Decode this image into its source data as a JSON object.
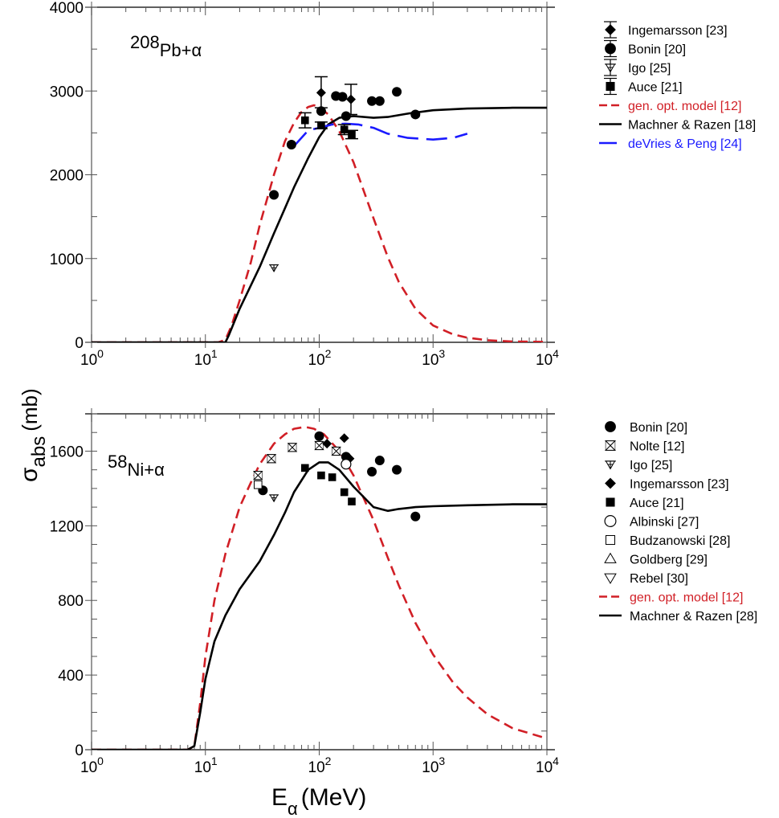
{
  "chart_data": [
    {
      "type": "scatter",
      "id": "pb",
      "title": "",
      "annotation": {
        "mass": "208",
        "text": "Pb+α"
      },
      "xlabel": "E_α (MeV)",
      "ylabel": "σ_abs (mb)",
      "xscale": "log",
      "xlim": [
        1,
        10000
      ],
      "ylim": [
        0,
        4000
      ],
      "yticks": [
        0,
        1000,
        2000,
        3000,
        4000
      ],
      "ytick_labels": [
        "0",
        "1000",
        "2000",
        "3000",
        "4000"
      ],
      "xticks": [
        1,
        10,
        100,
        1000,
        10000
      ],
      "xtick_labels": [
        {
          "base": "10",
          "exp": "0"
        },
        {
          "base": "10",
          "exp": "1"
        },
        {
          "base": "10",
          "exp": "2"
        },
        {
          "base": "10",
          "exp": "3"
        },
        {
          "base": "10",
          "exp": "4"
        }
      ],
      "legend_position": "right-outside-top",
      "series": [
        {
          "name": "Ingemarsson [23]",
          "kind": "points",
          "marker": "diamond-filled",
          "color": "#000000",
          "points": [
            [
              104,
              2980,
              3170,
              2800
            ],
            [
              190,
              2900,
              3080,
              2720
            ]
          ]
        },
        {
          "name": "Bonin [20]",
          "kind": "points",
          "marker": "circle-filled",
          "color": "#000000",
          "points": [
            [
              40,
              1760
            ],
            [
              57,
              2360
            ],
            [
              104,
              2760
            ],
            [
              140,
              2940
            ],
            [
              160,
              2930
            ],
            [
              172,
              2700
            ],
            [
              290,
              2880
            ],
            [
              340,
              2880
            ],
            [
              480,
              2990
            ],
            [
              700,
              2720
            ]
          ]
        },
        {
          "name": "Igo [25]",
          "kind": "points",
          "marker": "igo",
          "color": "#000000",
          "points": [
            [
              40,
              890
            ]
          ]
        },
        {
          "name": "Auce [21]",
          "kind": "points",
          "marker": "square-filled",
          "color": "#000000",
          "points": [
            [
              75,
              2650,
              2740,
              2560
            ],
            [
              104,
              2590,
              2630,
              2550
            ],
            [
              166,
              2540,
              2600,
              2480
            ],
            [
              193,
              2480,
              2530,
              2430
            ]
          ]
        },
        {
          "name": "gen. opt. model [12]",
          "kind": "line",
          "style": "dashed",
          "color": "#d11f26",
          "points": [
            [
              1,
              0
            ],
            [
              13,
              0
            ],
            [
              15,
              30
            ],
            [
              17,
              200
            ],
            [
              20,
              500
            ],
            [
              25,
              950
            ],
            [
              30,
              1400
            ],
            [
              40,
              2000
            ],
            [
              50,
              2400
            ],
            [
              60,
              2620
            ],
            [
              70,
              2750
            ],
            [
              80,
              2810
            ],
            [
              90,
              2830
            ],
            [
              100,
              2810
            ],
            [
              120,
              2720
            ],
            [
              150,
              2520
            ],
            [
              200,
              2150
            ],
            [
              300,
              1480
            ],
            [
              400,
              1020
            ],
            [
              500,
              720
            ],
            [
              700,
              400
            ],
            [
              1000,
              200
            ],
            [
              1500,
              95
            ],
            [
              2000,
              55
            ],
            [
              3000,
              25
            ],
            [
              5000,
              10
            ],
            [
              10000,
              5
            ]
          ]
        },
        {
          "name": "Machner & Razen [18]",
          "kind": "line",
          "style": "solid",
          "color": "#000000",
          "points": [
            [
              1,
              0
            ],
            [
              15,
              0
            ],
            [
              16,
              80
            ],
            [
              20,
              400
            ],
            [
              30,
              900
            ],
            [
              40,
              1300
            ],
            [
              50,
              1600
            ],
            [
              60,
              1850
            ],
            [
              80,
              2200
            ],
            [
              100,
              2450
            ],
            [
              120,
              2600
            ],
            [
              150,
              2680
            ],
            [
              200,
              2700
            ],
            [
              300,
              2680
            ],
            [
              400,
              2690
            ],
            [
              600,
              2730
            ],
            [
              1000,
              2770
            ],
            [
              2000,
              2790
            ],
            [
              5000,
              2800
            ],
            [
              10000,
              2800
            ]
          ]
        },
        {
          "name": "deVries & Peng [24]",
          "kind": "line",
          "style": "longdash",
          "color": "#1a1aff",
          "points": [
            [
              58,
              2320
            ],
            [
              80,
              2530
            ],
            [
              100,
              2560
            ],
            [
              130,
              2600
            ],
            [
              170,
              2610
            ],
            [
              220,
              2600
            ],
            [
              300,
              2560
            ],
            [
              400,
              2490
            ],
            [
              600,
              2440
            ],
            [
              1000,
              2420
            ],
            [
              1500,
              2440
            ],
            [
              2000,
              2490
            ]
          ]
        }
      ]
    },
    {
      "type": "scatter",
      "id": "ni",
      "title": "",
      "annotation": {
        "mass": "58",
        "text": "Ni+α"
      },
      "xlabel": "E_α (MeV)",
      "ylabel": "σ_abs (mb)",
      "xscale": "log",
      "xlim": [
        1,
        10000
      ],
      "ylim": [
        0,
        1800
      ],
      "yticks": [
        0,
        400,
        800,
        1200,
        1600
      ],
      "ytick_labels": [
        "0",
        "400",
        "800",
        "1200",
        "1600"
      ],
      "xticks": [
        1,
        10,
        100,
        1000,
        10000
      ],
      "xtick_labels": [
        {
          "base": "10",
          "exp": "0"
        },
        {
          "base": "10",
          "exp": "1"
        },
        {
          "base": "10",
          "exp": "2"
        },
        {
          "base": "10",
          "exp": "3"
        },
        {
          "base": "10",
          "exp": "4"
        }
      ],
      "legend_position": "right-outside-top",
      "series": [
        {
          "name": "Bonin [20]",
          "kind": "points",
          "marker": "circle-filled",
          "color": "#000000",
          "points": [
            [
              32,
              1390
            ],
            [
              100,
              1680
            ],
            [
              172,
              1570
            ],
            [
              290,
              1490
            ],
            [
              340,
              1550
            ],
            [
              480,
              1500
            ],
            [
              700,
              1250
            ]
          ]
        },
        {
          "name": "Nolte [12]",
          "kind": "points",
          "marker": "nolte",
          "color": "#000000",
          "points": [
            [
              29,
              1470
            ],
            [
              38,
              1560
            ],
            [
              58,
              1620
            ],
            [
              100,
              1630
            ],
            [
              141,
              1600
            ]
          ]
        },
        {
          "name": "Igo [25]",
          "kind": "points",
          "marker": "igo",
          "color": "#000000",
          "points": [
            [
              40,
              1350
            ]
          ]
        },
        {
          "name": "Ingemarsson [23]",
          "kind": "points",
          "marker": "diamond-filled",
          "color": "#000000",
          "points": [
            [
              117,
              1640
            ],
            [
              166,
              1670
            ],
            [
              185,
              1560
            ]
          ]
        },
        {
          "name": "Auce [21]",
          "kind": "points",
          "marker": "square-filled",
          "color": "#000000",
          "points": [
            [
              75,
              1510
            ],
            [
              104,
              1470
            ],
            [
              130,
              1460
            ],
            [
              166,
              1380
            ],
            [
              193,
              1330
            ]
          ]
        },
        {
          "name": "Albinski  [27]",
          "kind": "points",
          "marker": "circle-open",
          "color": "#000000",
          "points": [
            [
              172,
              1530
            ]
          ]
        },
        {
          "name": "Budzanowski [28]",
          "kind": "points",
          "marker": "square-open",
          "color": "#000000",
          "points": [
            [
              29,
              1420
            ]
          ]
        },
        {
          "name": "Goldberg [29]",
          "kind": "points",
          "marker": "triangle-up-open",
          "color": "#000000",
          "points": []
        },
        {
          "name": "Rebel [30]",
          "kind": "points",
          "marker": "triangle-down-open",
          "color": "#000000",
          "points": []
        },
        {
          "name": "gen. opt. model [12]",
          "kind": "line",
          "style": "dashed",
          "color": "#d11f26",
          "points": [
            [
              1,
              0
            ],
            [
              7,
              0
            ],
            [
              8,
              20
            ],
            [
              9,
              250
            ],
            [
              10,
              500
            ],
            [
              12,
              800
            ],
            [
              15,
              1050
            ],
            [
              20,
              1300
            ],
            [
              25,
              1430
            ],
            [
              30,
              1530
            ],
            [
              40,
              1640
            ],
            [
              50,
              1690
            ],
            [
              60,
              1720
            ],
            [
              75,
              1730
            ],
            [
              90,
              1720
            ],
            [
              110,
              1690
            ],
            [
              150,
              1600
            ],
            [
              200,
              1470
            ],
            [
              300,
              1230
            ],
            [
              400,
              1030
            ],
            [
              500,
              880
            ],
            [
              700,
              680
            ],
            [
              1000,
              510
            ],
            [
              1500,
              360
            ],
            [
              2000,
              280
            ],
            [
              3000,
              190
            ],
            [
              5000,
              115
            ],
            [
              10000,
              60
            ]
          ]
        },
        {
          "name": "Machner & Razen [28]",
          "kind": "line",
          "style": "solid",
          "color": "#000000",
          "points": [
            [
              1,
              0
            ],
            [
              7,
              0
            ],
            [
              8,
              20
            ],
            [
              9,
              200
            ],
            [
              10,
              380
            ],
            [
              12,
              580
            ],
            [
              15,
              720
            ],
            [
              20,
              860
            ],
            [
              30,
              1010
            ],
            [
              40,
              1150
            ],
            [
              50,
              1270
            ],
            [
              60,
              1380
            ],
            [
              80,
              1500
            ],
            [
              100,
              1540
            ],
            [
              120,
              1540
            ],
            [
              150,
              1500
            ],
            [
              200,
              1410
            ],
            [
              300,
              1300
            ],
            [
              400,
              1280
            ],
            [
              500,
              1290
            ],
            [
              700,
              1300
            ],
            [
              1000,
              1305
            ],
            [
              2000,
              1310
            ],
            [
              5000,
              1315
            ],
            [
              10000,
              1315
            ]
          ]
        }
      ]
    }
  ],
  "shared": {
    "ylabel_main": "σ",
    "ylabel_sub": "abs",
    "ylabel_unit": "(mb)",
    "xlabel_main": "E",
    "xlabel_sub": "α",
    "xlabel_unit": "(MeV)"
  }
}
